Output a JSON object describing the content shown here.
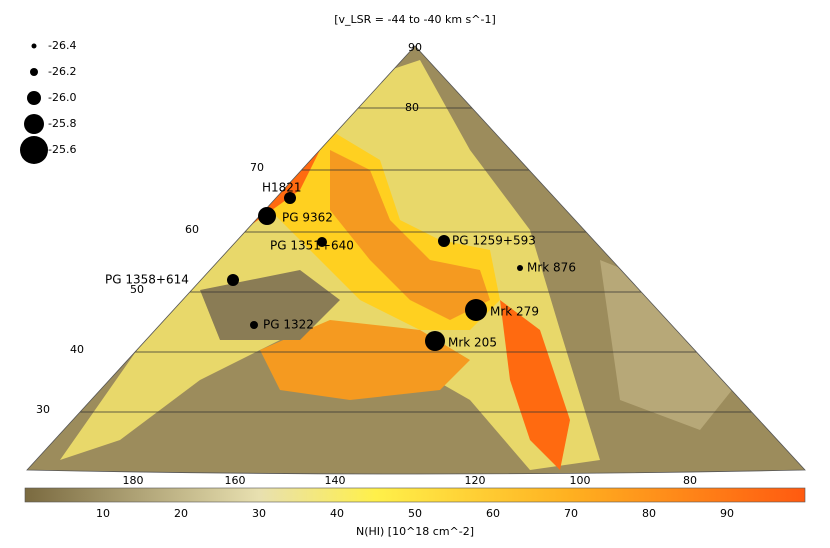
{
  "map": {
    "title": "[v_LSR = -44 to -40 km s^-1]",
    "legend": [
      "-26.4",
      "-26.2",
      "-26.0",
      "-25.8",
      "-25.6"
    ],
    "latitude_labels": [
      "90",
      "80",
      "70",
      "60",
      "50",
      "40",
      "30"
    ],
    "longitude_labels": [
      "180",
      "160",
      "140",
      "120",
      "100",
      "80"
    ],
    "colorbar": {
      "label": "N(HI) [10^18 cm^-2]",
      "ticks": [
        "10",
        "20",
        "30",
        "40",
        "50",
        "60",
        "70",
        "80",
        "90"
      ]
    },
    "sources": [
      "H1821",
      "PG 9362",
      "PG 1351+640",
      "PG 1259+593",
      "PG 1358+614",
      "Mrk 876",
      "Mrk 279",
      "PG 1322",
      "Mrk 205"
    ]
  }
}
